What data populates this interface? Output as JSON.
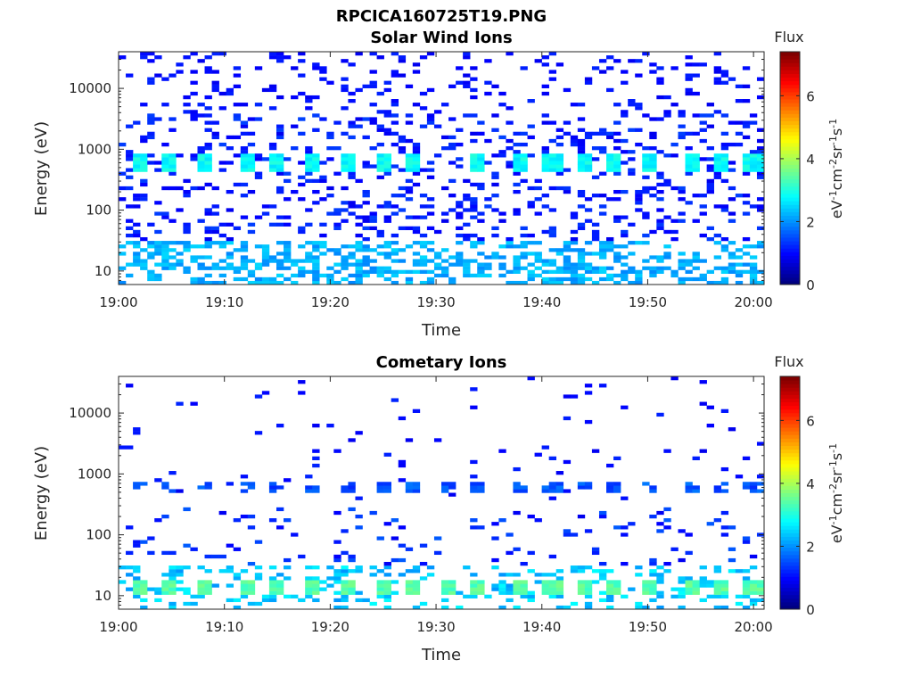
{
  "figure_title": "RPCICA160725T19.PNG",
  "chart_data": [
    {
      "type": "heatmap",
      "title": "Solar Wind Ions",
      "xlabel": "Time",
      "ylabel": "Energy (eV)",
      "yscale": "log",
      "ylim": [
        6,
        40000
      ],
      "x_range": [
        "19:00",
        "20:01"
      ],
      "x_ticks": [
        "19:00",
        "19:10",
        "19:20",
        "19:30",
        "19:40",
        "19:50",
        "20:00"
      ],
      "y_ticks": [
        {
          "value": 10,
          "label": "10"
        },
        {
          "value": 100,
          "label": "100"
        },
        {
          "value": 1000,
          "label": "1000"
        },
        {
          "value": 10000,
          "label": "10000"
        }
      ],
      "colorbar": {
        "title": "Flux",
        "label": "eV-1cm-2sr-1s-1",
        "range": [
          0,
          7.4
        ],
        "ticks": [
          "0",
          "2",
          "4",
          "6"
        ],
        "colormap": "jet"
      },
      "description_of_values": {
        "dominant_band_eV": [
          400,
          900
        ],
        "dominant_band_flux": 2.8,
        "dominant_band_times": [
          "19:02",
          "19:05",
          "19:08",
          "19:12",
          "19:15",
          "19:18",
          "19:22",
          "19:25",
          "19:28",
          "19:34",
          "19:38",
          "19:41",
          "19:44",
          "19:47",
          "19:50",
          "19:54",
          "19:57",
          "20:00"
        ],
        "low_energy_band_eV": [
          6,
          30
        ],
        "low_energy_band_flux": 2.2,
        "background_flux": 0.8
      }
    },
    {
      "type": "heatmap",
      "title": "Cometary Ions",
      "xlabel": "Time",
      "ylabel": "Energy (eV)",
      "yscale": "log",
      "ylim": [
        6,
        40000
      ],
      "x_range": [
        "19:00",
        "20:01"
      ],
      "x_ticks": [
        "19:00",
        "19:10",
        "19:20",
        "19:30",
        "19:40",
        "19:50",
        "20:00"
      ],
      "y_ticks": [
        {
          "value": 10,
          "label": "10"
        },
        {
          "value": 100,
          "label": "100"
        },
        {
          "value": 1000,
          "label": "1000"
        },
        {
          "value": 10000,
          "label": "10000"
        }
      ],
      "colorbar": {
        "title": "Flux",
        "label": "eV-1cm-2sr-1s-1",
        "range": [
          0,
          7.4
        ],
        "ticks": [
          "0",
          "2",
          "4",
          "6"
        ],
        "colormap": "jet"
      },
      "description_of_values": {
        "dominant_band_eV": [
          11,
          18
        ],
        "dominant_band_flux": 3.4,
        "dominant_band_times": [
          "19:02",
          "19:05",
          "19:08",
          "19:12",
          "19:15",
          "19:18",
          "19:22",
          "19:25",
          "19:28",
          "19:31",
          "19:34",
          "19:38",
          "19:41",
          "19:44",
          "19:47",
          "19:50",
          "19:54",
          "19:57",
          "20:00"
        ],
        "secondary_band_eV": [
          500,
          700
        ],
        "secondary_band_flux": 1.5,
        "background_flux": 0.8
      }
    }
  ]
}
